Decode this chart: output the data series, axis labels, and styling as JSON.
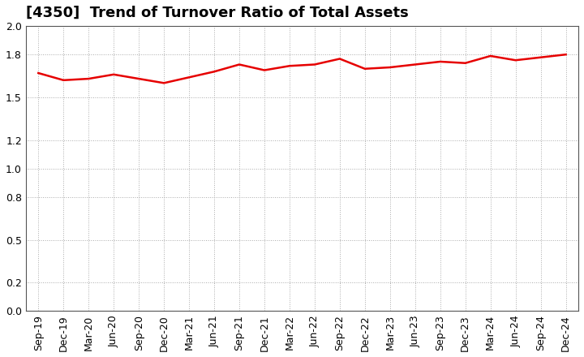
{
  "title": "[4350]  Trend of Turnover Ratio of Total Assets",
  "x_labels": [
    "Sep-19",
    "Dec-19",
    "Mar-20",
    "Jun-20",
    "Sep-20",
    "Dec-20",
    "Mar-21",
    "Jun-21",
    "Sep-21",
    "Dec-21",
    "Mar-22",
    "Jun-22",
    "Sep-22",
    "Dec-22",
    "Mar-23",
    "Jun-23",
    "Sep-23",
    "Dec-23",
    "Mar-24",
    "Jun-24",
    "Sep-24",
    "Dec-24"
  ],
  "values": [
    1.67,
    1.62,
    1.63,
    1.66,
    1.63,
    1.6,
    1.64,
    1.68,
    1.73,
    1.69,
    1.72,
    1.73,
    1.77,
    1.7,
    1.71,
    1.73,
    1.75,
    1.74,
    1.79,
    1.76,
    1.78,
    1.8
  ],
  "line_color": "#e60000",
  "line_width": 1.8,
  "ylim": [
    0.0,
    2.0
  ],
  "yticks": [
    0.0,
    0.2,
    0.5,
    0.8,
    1.0,
    1.2,
    1.5,
    1.8,
    2.0
  ],
  "background_color": "#ffffff",
  "grid_color": "#aaaaaa",
  "title_fontsize": 13,
  "tick_fontsize": 9
}
